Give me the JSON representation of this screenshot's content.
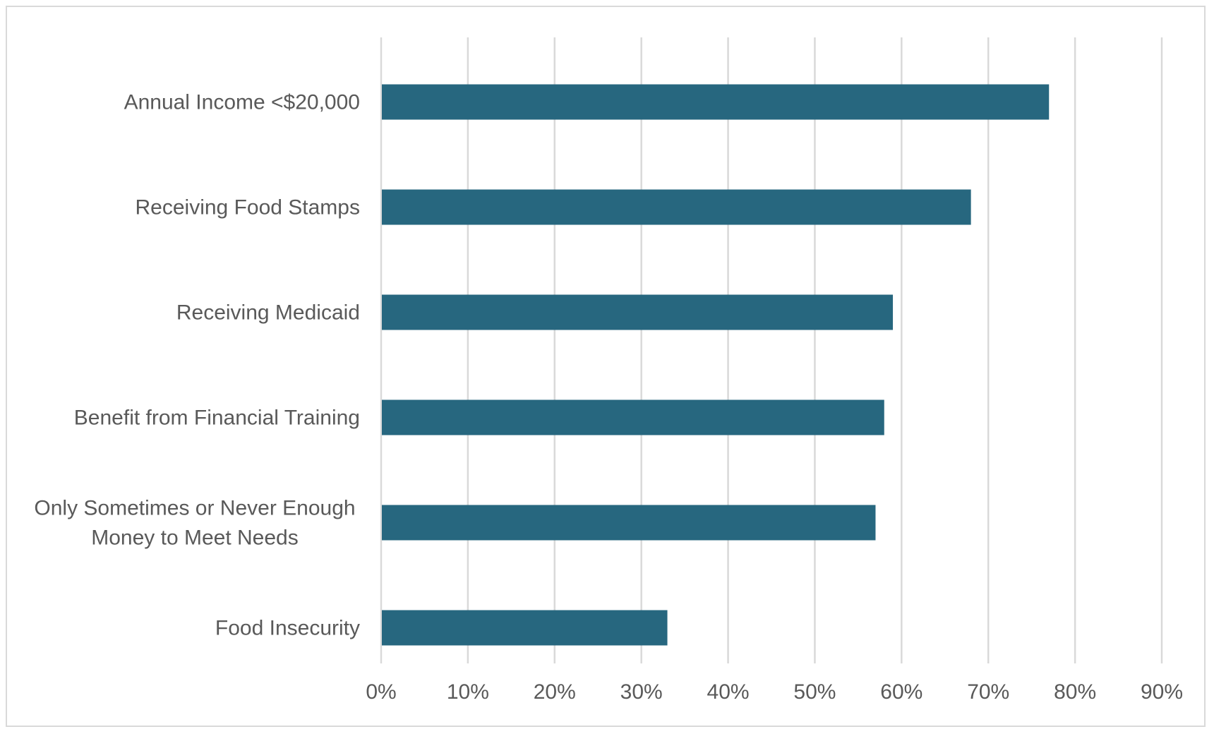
{
  "chart_data": {
    "type": "bar",
    "orientation": "horizontal",
    "title": "",
    "xlabel": "",
    "ylabel": "",
    "categories": [
      [
        "Annual Income <$20,000"
      ],
      [
        "Receiving Food Stamps"
      ],
      [
        "Receiving Medicaid"
      ],
      [
        "Benefit from Financial Training"
      ],
      [
        "Only Sometimes or Never Enough",
        "Money to Meet Needs"
      ],
      [
        "Food Insecurity"
      ]
    ],
    "values": [
      0.77,
      0.68,
      0.59,
      0.58,
      0.57,
      0.33
    ],
    "xlim": [
      0,
      0.9
    ],
    "x_ticks": [
      0,
      0.1,
      0.2,
      0.3,
      0.4,
      0.5,
      0.6,
      0.7,
      0.8,
      0.9
    ],
    "x_tick_labels": [
      "0%",
      "10%",
      "20%",
      "30%",
      "40%",
      "50%",
      "60%",
      "70%",
      "80%",
      "90%"
    ],
    "grid": "vertical",
    "legend": "none",
    "bar_color": "#27677f"
  }
}
